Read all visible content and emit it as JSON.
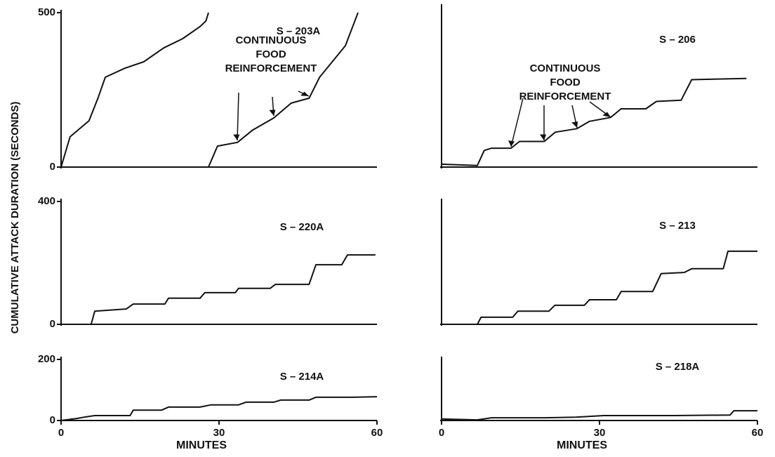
{
  "ylabel": "CUMULATIVE ATTACK DURATION (SECONDS)",
  "chart_data": [
    {
      "type": "line",
      "title": "S – 203A",
      "annotation": [
        "CONTINUOUS",
        "FOOD",
        "REINFORCEMENT"
      ],
      "xlim": [
        0,
        60
      ],
      "ylim": [
        0,
        500
      ],
      "yticks": [
        0,
        500
      ],
      "series": [
        {
          "color": "#111111",
          "x": [
            0,
            1.7,
            5.3,
            7,
            8.4,
            12.1,
            15.7,
            19.5,
            23.1,
            26.4,
            27.5,
            28
          ],
          "values": [
            0,
            98,
            150,
            223,
            291,
            320,
            341,
            386,
            416,
            455,
            473,
            500
          ]
        },
        {
          "color": "#111111",
          "x": [
            28,
            29.7,
            33.5,
            36.4,
            40.4,
            43.7,
            47.1,
            49.1,
            54,
            56.4
          ],
          "values": [
            0,
            68,
            80,
            120,
            159,
            207,
            223,
            291,
            393,
            500
          ]
        }
      ]
    },
    {
      "type": "line",
      "title": "S – 206",
      "annotation": [
        "CONTINUOUS",
        "FOOD",
        "REINFORCEMENT"
      ],
      "xlim": [
        0,
        60
      ],
      "ylim": [
        0,
        500
      ],
      "series": [
        {
          "color": "#111111",
          "x": [
            0,
            6.8,
            8.1,
            9.5,
            13.2,
            14.8,
            19.5,
            21.6,
            25.7,
            28.1,
            32.1,
            34.1,
            38.8,
            40.8,
            45.5,
            47.5,
            57.9
          ],
          "values": [
            9,
            5,
            52,
            59,
            59,
            80,
            80,
            109,
            120,
            143,
            155,
            182,
            182,
            205,
            209,
            273,
            277
          ]
        }
      ]
    },
    {
      "type": "line",
      "title": "S – 220A",
      "xlim": [
        0,
        60
      ],
      "ylim": [
        0,
        400
      ],
      "yticks": [
        0,
        400
      ],
      "series": [
        {
          "color": "#111111",
          "x": [
            0,
            5.7,
            6.4,
            12.4,
            13.7,
            19.7,
            20.4,
            26.4,
            27.3,
            33.1,
            33.7,
            39.7,
            40.7,
            47.1,
            48.4,
            53.3,
            54.4,
            59.7
          ],
          "values": [
            0,
            0,
            43,
            50,
            66,
            66,
            85,
            85,
            103,
            103,
            117,
            117,
            130,
            130,
            194,
            194,
            226,
            226
          ]
        }
      ]
    },
    {
      "type": "line",
      "title": "S – 213",
      "xlim": [
        0,
        60
      ],
      "ylim": [
        0,
        400
      ],
      "series": [
        {
          "color": "#111111",
          "x": [
            0,
            6.8,
            7.5,
            13.5,
            14.5,
            20.4,
            21.5,
            27.1,
            28.1,
            33.2,
            34.1,
            40.1,
            41.7,
            46.1,
            47.5,
            53.5,
            54.4,
            60
          ],
          "values": [
            0,
            0,
            23,
            23,
            43,
            43,
            62,
            62,
            80,
            80,
            107,
            107,
            165,
            169,
            181,
            181,
            238,
            238
          ]
        }
      ]
    },
    {
      "type": "line",
      "title": "S – 214A",
      "xlabel": "MINUTES",
      "xlim": [
        0,
        60
      ],
      "xticks": [
        0,
        30,
        60
      ],
      "ylim": [
        0,
        200
      ],
      "yticks": [
        0,
        200
      ],
      "series": [
        {
          "color": "#111111",
          "x": [
            0,
            3.1,
            4.4,
            6.4,
            13.1,
            13.7,
            19.1,
            20.4,
            26.4,
            28.4,
            33.7,
            35.1,
            40.4,
            41.7,
            47.1,
            48.4,
            55.1,
            60
          ],
          "values": [
            0,
            7,
            11,
            16,
            16,
            34,
            34,
            44,
            44,
            51,
            51,
            60,
            60,
            67,
            67,
            76,
            76,
            78
          ]
        }
      ]
    },
    {
      "type": "line",
      "title": "S – 218A",
      "xlabel": "MINUTES",
      "xlim": [
        0,
        60
      ],
      "xticks": [
        0,
        30,
        60
      ],
      "ylim": [
        0,
        200
      ],
      "series": [
        {
          "color": "#111111",
          "x": [
            0,
            6.8,
            9.5,
            19.6,
            25.5,
            30.8,
            44.1,
            54.8,
            55.5,
            60
          ],
          "values": [
            5,
            2,
            9,
            9,
            11,
            16,
            16,
            18,
            32,
            32
          ]
        }
      ]
    }
  ]
}
